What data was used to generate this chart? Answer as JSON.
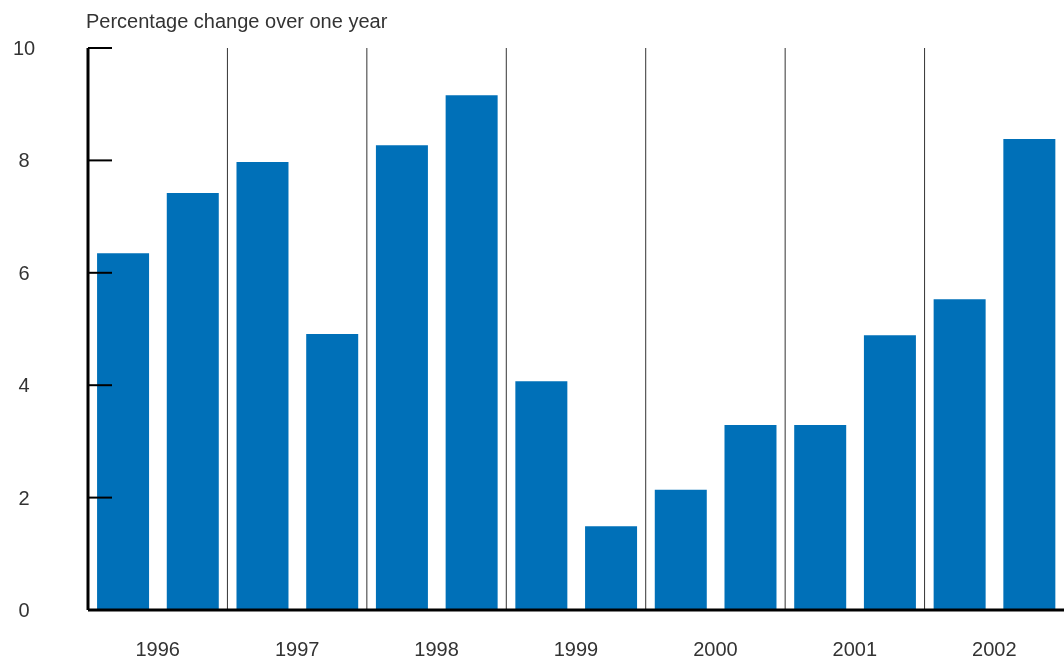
{
  "chart_data": {
    "type": "bar",
    "title": "Percentage change over one year",
    "categories": [
      "1996",
      null,
      "1997",
      null,
      "1998",
      null,
      "1999",
      null,
      "2000",
      null,
      "2001",
      null,
      "2002",
      null
    ],
    "values": [
      6.35,
      7.42,
      7.97,
      4.91,
      8.27,
      9.16,
      4.07,
      1.49,
      2.14,
      3.29,
      3.29,
      4.89,
      5.53,
      8.38
    ],
    "color": "#0070b8",
    "ylim": [
      0,
      10
    ],
    "yticks": [
      0,
      2,
      4,
      6,
      8,
      10
    ],
    "grid": "x"
  }
}
